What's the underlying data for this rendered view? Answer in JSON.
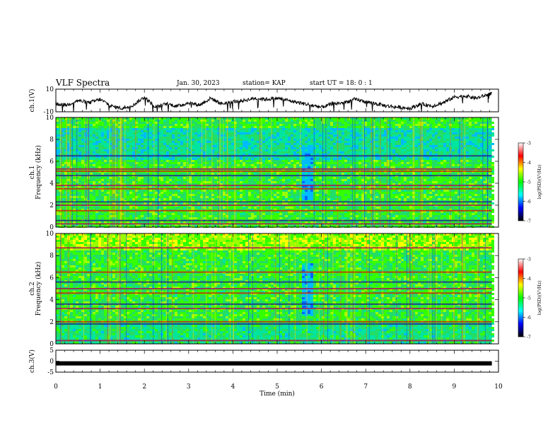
{
  "header": {
    "title": "VLF Spectra",
    "date": "Jan. 30, 2023",
    "station": "station= KAP",
    "start": "start  UT =   18: 0  : 1"
  },
  "colorbar": {
    "label": "log(PSD)(V²/Hz)",
    "ticks": [
      "-3",
      "-4",
      "-5",
      "-6",
      "-7"
    ],
    "colors": [
      "#ffffff",
      "#ff0000",
      "#ffff00",
      "#00ff00",
      "#00ffff",
      "#0000ff",
      "#000000"
    ]
  },
  "chart_data": [
    {
      "type": "line",
      "name": "ch1-waveform",
      "ylabel": "ch.1(V)",
      "ylim": [
        -10,
        10
      ],
      "yticks": [
        "10",
        "-10"
      ],
      "xlim": [
        0,
        10
      ],
      "x": [
        0,
        0.25,
        0.5,
        0.75,
        1.0,
        1.25,
        1.5,
        1.75,
        2.0,
        2.25,
        2.5,
        2.75,
        3.0,
        3.25,
        3.5,
        3.75,
        4.0,
        4.25,
        4.5,
        4.75,
        5.0,
        5.25,
        5.5,
        5.75,
        6.0,
        6.25,
        6.5,
        6.75,
        7.0,
        7.25,
        7.5,
        7.75,
        8.0,
        8.25,
        8.5,
        8.75,
        9.0,
        9.25,
        9.5,
        9.75,
        9.85
      ],
      "values": [
        -3,
        -4,
        0,
        -2,
        1,
        -5,
        -7,
        -4,
        3,
        -6,
        -3,
        -5,
        -2,
        -4,
        2,
        -3,
        -1,
        0,
        2,
        1,
        2,
        0,
        -2,
        -4,
        -6,
        -3,
        -2,
        1,
        -1,
        -3,
        -5,
        -6,
        -7,
        -3,
        -5,
        -2,
        3,
        4,
        2,
        5,
        6
      ]
    },
    {
      "type": "heatmap",
      "name": "ch1-spectrogram",
      "ylabel": "ch.1\nFrequency (kHz)",
      "xlim": [
        0,
        10
      ],
      "ylim": [
        0,
        10
      ],
      "yticks": [
        "0",
        "2",
        "4",
        "6",
        "8",
        "10"
      ],
      "quiet_band_min": [
        5.5,
        5.8
      ],
      "horizontal_lines_khz": [
        0.3,
        0.6,
        1.5,
        2.0,
        2.3,
        3.5,
        3.8,
        4.7,
        5.1,
        5.3,
        6.5
      ]
    },
    {
      "type": "heatmap",
      "name": "ch2-spectrogram",
      "ylabel": "ch.2\nFrequency (kHz)",
      "xlim": [
        0,
        10
      ],
      "ylim": [
        0,
        10
      ],
      "yticks": [
        "0",
        "2",
        "4",
        "6",
        "8",
        "10"
      ],
      "quiet_band_min": [
        5.5,
        5.8
      ],
      "horizontal_lines_khz": [
        0.3,
        1.8,
        2.0,
        3.2,
        3.6,
        4.6,
        5.0,
        5.6,
        6.5,
        8.7
      ]
    },
    {
      "type": "line",
      "name": "ch3-waveform",
      "ylabel": "ch.3(V)",
      "ylim": [
        -5,
        5
      ],
      "yticks": [
        "5",
        "0",
        "-5"
      ],
      "xlim": [
        0,
        10
      ],
      "x": [
        0,
        9.85
      ],
      "values": [
        -1,
        -1
      ]
    }
  ],
  "xaxis": {
    "label": "Time (min)",
    "ticks": [
      "0",
      "1",
      "2",
      "3",
      "4",
      "5",
      "6",
      "7",
      "8",
      "9",
      "10"
    ]
  }
}
